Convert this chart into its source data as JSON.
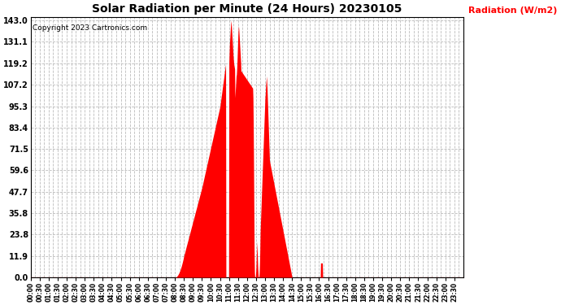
{
  "title": "Solar Radiation per Minute (24 Hours) 20230105",
  "ylabel": "Radiation (W/m2)",
  "copyright_text": "Copyright 2023 Cartronics.com",
  "fill_color": "#FF0000",
  "background_color": "#FFFFFF",
  "grid_color": "#BBBBBB",
  "yticks": [
    0.0,
    11.9,
    23.8,
    35.8,
    47.7,
    59.6,
    71.5,
    83.4,
    95.3,
    107.2,
    119.2,
    131.1,
    143.0
  ],
  "ymax": 143.0,
  "ymin": 0.0,
  "total_minutes": 1440,
  "sunrise_min": 480,
  "sunset_min": 982,
  "peak_min": 720,
  "peak_val": 143.0
}
